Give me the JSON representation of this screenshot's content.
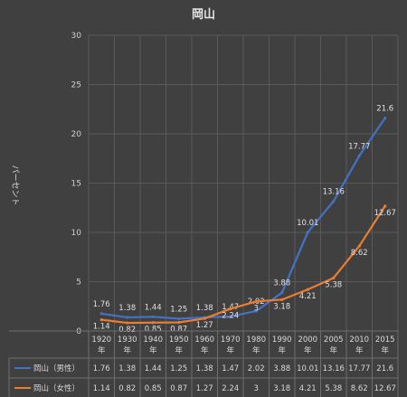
{
  "chart_data": {
    "type": "line",
    "title": "岡山",
    "ylabel": "パーセント",
    "ylim": [
      0,
      30
    ],
    "yticks": [
      0,
      5,
      10,
      15,
      20,
      25,
      30
    ],
    "categories": [
      "1920年",
      "1930年",
      "1940年",
      "1950年",
      "1960年",
      "1970年",
      "1980年",
      "1990年",
      "2000年",
      "2005年",
      "2010年",
      "2015年"
    ],
    "grid": true,
    "legend": "data-table",
    "series": [
      {
        "name": "岡山（男性）",
        "color": "#4472c4",
        "values": [
          1.76,
          1.38,
          1.44,
          1.25,
          1.38,
          1.47,
          2.02,
          3.88,
          10.01,
          13.16,
          17.77,
          21.6
        ],
        "labels": [
          "1.76",
          "1.38",
          "1.44",
          "1.25",
          "1.38",
          "1.47",
          "2.02",
          "3.88",
          "10.01",
          "13.16",
          "17.77",
          "21.6"
        ]
      },
      {
        "name": "岡山（女性）",
        "color": "#ed7d31",
        "values": [
          1.14,
          0.82,
          0.85,
          0.87,
          1.27,
          2.24,
          3,
          3.18,
          4.21,
          5.38,
          8.62,
          12.67
        ],
        "labels": [
          "1.14",
          "0.82",
          "0.85",
          "0.87",
          "1.27",
          "2.24",
          "3",
          "3.18",
          "4.21",
          "5.38",
          "8.62",
          "12.67"
        ]
      }
    ]
  }
}
